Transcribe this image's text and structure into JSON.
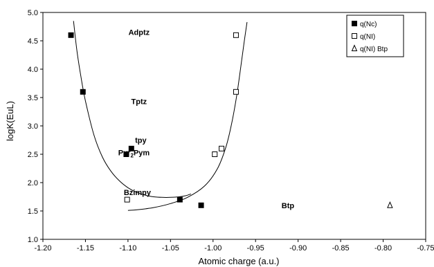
{
  "chart_data": {
    "type": "scatter",
    "xlabel": "Atomic charge (a.u.)",
    "ylabel": "logK(EuL)",
    "xlim": [
      -1.2,
      -0.75
    ],
    "ylim": [
      1.0,
      5.0
    ],
    "xticks": [
      "-1.20",
      "-1.15",
      "-1.10",
      "-1.05",
      "-1.00",
      "-0.95",
      "-0.90",
      "-0.85",
      "-0.80",
      "-0.75"
    ],
    "yticks": [
      "1.0",
      "1.5",
      "2.0",
      "2.5",
      "3.0",
      "3.5",
      "4.0",
      "4.5",
      "5.0"
    ],
    "grid": false,
    "legend_position": "top-right",
    "series": [
      {
        "name": "q(Nc)",
        "marker": "filled-square",
        "points": [
          {
            "x": -1.167,
            "y": 4.6
          },
          {
            "x": -1.153,
            "y": 3.6
          },
          {
            "x": -1.096,
            "y": 2.6
          },
          {
            "x": -1.102,
            "y": 2.5
          },
          {
            "x": -1.039,
            "y": 1.7
          },
          {
            "x": -1.014,
            "y": 1.6
          }
        ]
      },
      {
        "name": "q(NI)",
        "marker": "open-square",
        "points": [
          {
            "x": -0.973,
            "y": 4.6
          },
          {
            "x": -0.973,
            "y": 3.6
          },
          {
            "x": -0.99,
            "y": 2.6
          },
          {
            "x": -0.998,
            "y": 2.5
          },
          {
            "x": -1.101,
            "y": 1.7
          }
        ]
      },
      {
        "name": "q(NI) Btp",
        "marker": "open-triangle",
        "points": [
          {
            "x": -0.792,
            "y": 1.6
          }
        ]
      }
    ],
    "fit_curves": [
      {
        "for": "q(Nc)",
        "points": [
          [
            -1.164,
            4.85
          ],
          [
            -1.16,
            4.32
          ],
          [
            -1.155,
            3.84
          ],
          [
            -1.15,
            3.44
          ],
          [
            -1.14,
            2.84
          ],
          [
            -1.13,
            2.45
          ],
          [
            -1.12,
            2.2
          ],
          [
            -1.11,
            2.03
          ],
          [
            -1.1,
            1.91
          ],
          [
            -1.09,
            1.83
          ],
          [
            -1.08,
            1.78
          ],
          [
            -1.07,
            1.75
          ],
          [
            -1.06,
            1.74
          ],
          [
            -1.05,
            1.74
          ],
          [
            -1.04,
            1.75
          ],
          [
            -1.032,
            1.77
          ],
          [
            -1.026,
            1.8
          ]
        ]
      },
      {
        "for": "q(NI)",
        "points": [
          [
            -1.1,
            1.51
          ],
          [
            -1.09,
            1.52
          ],
          [
            -1.07,
            1.56
          ],
          [
            -1.05,
            1.63
          ],
          [
            -1.03,
            1.74
          ],
          [
            -1.01,
            1.94
          ],
          [
            -0.995,
            2.24
          ],
          [
            -0.985,
            2.62
          ],
          [
            -0.978,
            3.05
          ],
          [
            -0.972,
            3.55
          ],
          [
            -0.967,
            4.08
          ],
          [
            -0.963,
            4.52
          ],
          [
            -0.96,
            4.83
          ]
        ]
      }
    ],
    "annotations": [
      {
        "text": "Adptz",
        "x": -1.087,
        "y": 4.65
      },
      {
        "text": "Tptz",
        "x": -1.087,
        "y": 3.43
      },
      {
        "text": "tpy",
        "x": -1.085,
        "y": 2.75
      },
      {
        "text": "Bzimpy",
        "x": -1.089,
        "y": 1.83
      },
      {
        "text": "Btp",
        "x": -0.912,
        "y": 1.6
      }
    ],
    "annotation_pyr": {
      "main": "Pyr",
      "sub": "2",
      "rest": "Pym",
      "x": -1.093,
      "y": 2.53
    }
  }
}
